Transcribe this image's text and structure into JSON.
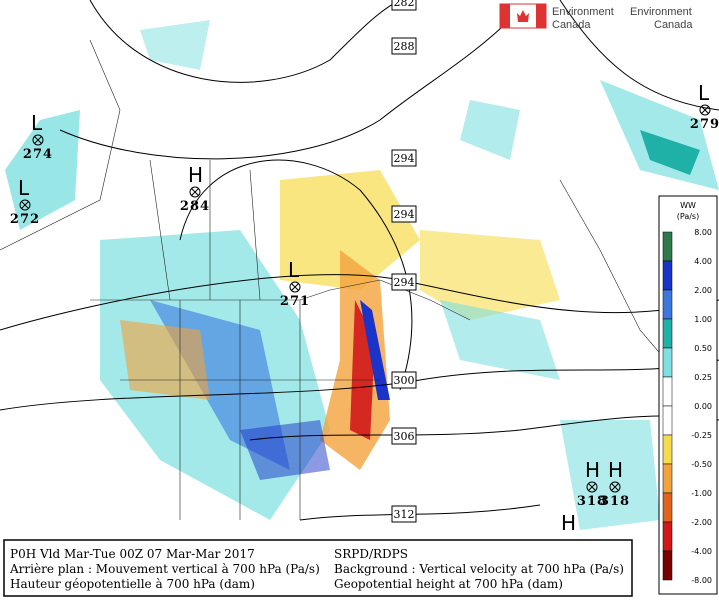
{
  "header": {
    "logo": [
      "Environment",
      "Canada"
    ],
    "logo_ghost": [
      "Environment",
      "Canada"
    ]
  },
  "systems": [
    {
      "symbol": "L",
      "value": "274"
    },
    {
      "symbol": "L",
      "value": "272"
    },
    {
      "symbol": "H",
      "value": "284"
    },
    {
      "symbol": "L",
      "value": "271"
    },
    {
      "symbol": "L",
      "value": "279"
    },
    {
      "symbol": "H",
      "value": "318"
    },
    {
      "symbol": "H",
      "value": "318"
    },
    {
      "symbol": "H",
      "value": ""
    }
  ],
  "contour_labels": [
    "282",
    "288",
    "294",
    "294",
    "294",
    "300",
    "306",
    "312"
  ],
  "legend": {
    "title": [
      "WW",
      "(Pa/s)"
    ],
    "labels": [
      "8.00",
      "4.00",
      "2.00",
      "1.00",
      "0.50",
      "0.25",
      "0.00",
      "-0.25",
      "-0.50",
      "-1.00",
      "-2.00",
      "-4.00",
      "-8.00"
    ],
    "colors": [
      "#2f7a4a",
      "#1a33c8",
      "#3a78e0",
      "#1fb0a8",
      "#7ee0e0",
      "#ffffff",
      "#ffffff",
      "#f6dc4c",
      "#f2a23c",
      "#e0641c",
      "#d01818",
      "#7a0000"
    ]
  },
  "footer": {
    "left": [
      "P0H Vld Mar-Tue 00Z 07 Mar-Mar 2017",
      "Arrière plan : Mouvement vertical à 700 hPa (Pa/s)",
      "Hauteur géopotentielle à 700 hPa (dam)"
    ],
    "right": [
      "SRPD/RDPS",
      "Background : Vertical velocity at 700 hPa (Pa/s)",
      "Geopotential height at 700 hPa (dam)"
    ]
  }
}
